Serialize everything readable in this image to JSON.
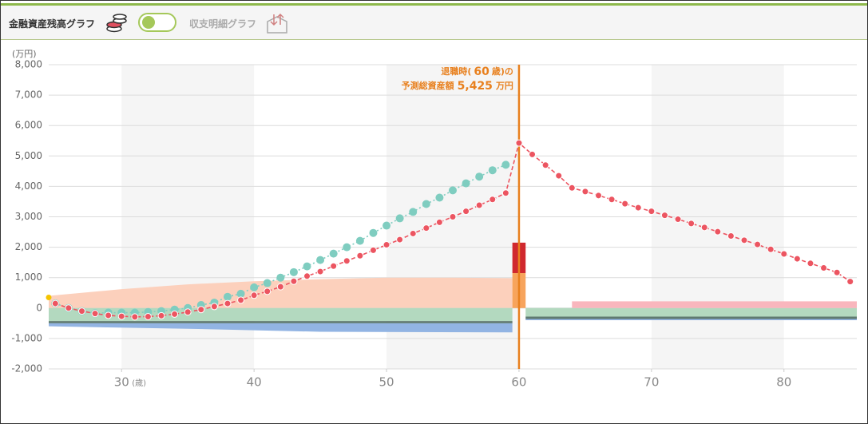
{
  "header": {
    "title": "金融資産残高グラフ",
    "alt_title": "収支明細グラフ"
  },
  "chart_data": {
    "type": "line",
    "y_unit": "(万円)",
    "x_unit": "(歳)",
    "xlim": [
      24.5,
      85.5
    ],
    "xticks": [
      30,
      40,
      50,
      60,
      70,
      80
    ],
    "ylim": [
      -2000,
      8000
    ],
    "yticks": [
      {
        "value": -2000,
        "label": "-2,000"
      },
      {
        "value": -1000,
        "label": "-1,000"
      },
      0,
      {
        "value": 1000,
        "label": "1,000"
      },
      {
        "value": 2000,
        "label": "2,000"
      },
      {
        "value": 3000,
        "label": "3,000"
      },
      {
        "value": 4000,
        "label": "4,000"
      },
      {
        "value": 5000,
        "label": "5,000"
      },
      {
        "value": 6000,
        "label": "6,000"
      },
      {
        "value": 7000,
        "label": "7,000"
      },
      {
        "value": 8000,
        "label": "8,000"
      }
    ],
    "grid": true,
    "band_color": "#f5f5f5",
    "series": [
      {
        "color": "#7fcdc0",
        "style": "dotted",
        "x": [
          25,
          26,
          27,
          28,
          29,
          30,
          31,
          32,
          33,
          34,
          35,
          36,
          37,
          38,
          39,
          40,
          41,
          42,
          43,
          44,
          45,
          46,
          47,
          48,
          49,
          50,
          51,
          52,
          53,
          54,
          55,
          56,
          57,
          58,
          59
        ],
        "values": [
          150,
          0,
          -100,
          -170,
          -150,
          -150,
          -150,
          -130,
          -100,
          -50,
          0,
          100,
          180,
          370,
          470,
          680,
          820,
          1000,
          1180,
          1370,
          1580,
          1790,
          2000,
          2210,
          2470,
          2710,
          2950,
          3160,
          3420,
          3630,
          3870,
          4100,
          4320,
          4530,
          4710
        ]
      },
      {
        "color": "#ec5561",
        "style": "dashed",
        "x": [
          25,
          26,
          27,
          28,
          29,
          30,
          31,
          32,
          33,
          34,
          35,
          36,
          37,
          38,
          39,
          40,
          41,
          42,
          43,
          44,
          45,
          46,
          47,
          48,
          49,
          50,
          51,
          52,
          53,
          54,
          55,
          56,
          57,
          58,
          59,
          60,
          61,
          62,
          63,
          64,
          65,
          66,
          67,
          68,
          69,
          70,
          71,
          72,
          73,
          74,
          75,
          76,
          77,
          78,
          79,
          80,
          81,
          82,
          83,
          84,
          85
        ],
        "values": [
          150,
          0,
          -100,
          -180,
          -240,
          -270,
          -290,
          -280,
          -250,
          -200,
          -130,
          -50,
          50,
          150,
          260,
          420,
          550,
          700,
          880,
          1050,
          1200,
          1380,
          1550,
          1720,
          1900,
          2080,
          2250,
          2450,
          2630,
          2820,
          3000,
          3180,
          3380,
          3570,
          3780,
          5425,
          5050,
          4700,
          4350,
          3950,
          3830,
          3700,
          3570,
          3430,
          3300,
          3180,
          3050,
          2920,
          2780,
          2650,
          2510,
          2370,
          2230,
          2090,
          1930,
          1780,
          1620,
          1470,
          1320,
          1170,
          870
        ]
      }
    ],
    "areas": [
      {
        "color": "#fcd0bc",
        "x": [
          24.5,
          30,
          35,
          40,
          45,
          50,
          55,
          59.5
        ],
        "values": [
          400,
          620,
          780,
          880,
          950,
          1000,
          1000,
          980
        ]
      },
      {
        "color": "#b3d9bf",
        "x": [
          24.5,
          35,
          45,
          59.5
        ],
        "values": [
          -430,
          -430,
          -430,
          -430
        ]
      },
      {
        "color": "#5f7a70",
        "x": [
          24.5,
          35,
          45,
          59.5
        ],
        "values": [
          -70,
          -70,
          -70,
          -70
        ]
      },
      {
        "color": "#92b4e3",
        "x": [
          24.5,
          35,
          45,
          59.5
        ],
        "values": [
          -100,
          -180,
          -280,
          -300
        ]
      },
      {
        "color": "#b3d9bf",
        "x": [
          60.5,
          85.5
        ],
        "values": [
          -280,
          -280
        ]
      },
      {
        "color": "#5f7a70",
        "x": [
          60.5,
          85.5
        ],
        "values": [
          -80,
          -80
        ]
      },
      {
        "color": "#92b4e3",
        "x": [
          60.5,
          85.5
        ],
        "values": [
          -40,
          -40
        ]
      },
      {
        "color": "#f9b6bd",
        "x": [
          64,
          85.5
        ],
        "values": [
          220,
          220
        ]
      }
    ],
    "bar_stack": {
      "x": [
        59.5,
        60.5
      ],
      "segments": [
        {
          "color": "#f7a45c",
          "value": 1150
        },
        {
          "color": "#d0282e",
          "value": 1000
        }
      ]
    },
    "start_marker": {
      "x": 24.5,
      "value": 350,
      "color": "#f5c400"
    },
    "retirement": {
      "color": "#e8801e",
      "x": 60,
      "text1": "退職時(",
      "text2": "歳)の",
      "text3": "予測総資産額",
      "value": 5425,
      "value_label": "5,425",
      "unit": "万円"
    }
  }
}
